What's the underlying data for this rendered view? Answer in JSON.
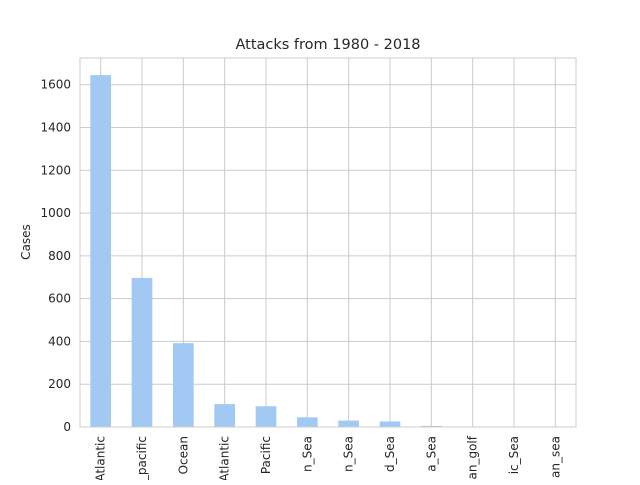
{
  "chart_data": {
    "type": "bar",
    "title": "Attacks from 1980 - 2018",
    "xlabel": "",
    "ylabel": "Cases",
    "categories": [
      "Atlantic",
      "_pacific",
      "Ocean",
      "Atlantic",
      "Pacific",
      "n_Sea",
      "n_Sea",
      "d_Sea",
      "a_Sea",
      "an_golf",
      "ic_Sea",
      "an_sea"
    ],
    "values": [
      1645,
      697,
      392,
      107,
      97,
      45,
      30,
      26,
      5,
      2,
      1,
      1
    ],
    "ylim": [
      0,
      1725
    ],
    "yticks": [
      0,
      200,
      400,
      600,
      800,
      1000,
      1200,
      1400,
      1600
    ],
    "grid": true,
    "bar_color": "#a1c9f4",
    "grid_color": "#cccccc"
  }
}
